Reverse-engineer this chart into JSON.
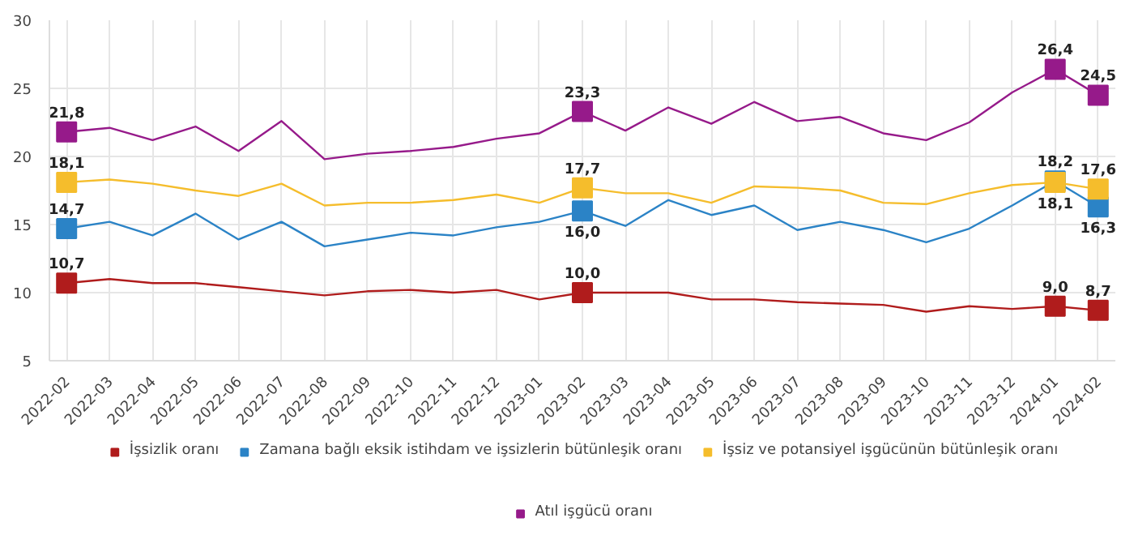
{
  "chart_data": {
    "type": "line",
    "categories": [
      "2022-02",
      "2022-03",
      "2022-04",
      "2022-05",
      "2022-06",
      "2022-07",
      "2022-08",
      "2022-09",
      "2022-10",
      "2022-11",
      "2022-12",
      "2023-01",
      "2023-02",
      "2023-03",
      "2023-04",
      "2023-05",
      "2023-06",
      "2023-07",
      "2023-08",
      "2023-09",
      "2023-10",
      "2023-11",
      "2023-12",
      "2024-01",
      "2024-02"
    ],
    "ylim": [
      5,
      30
    ],
    "yticks": [
      5,
      10,
      15,
      20,
      25,
      30
    ],
    "grid": true,
    "legend": "bottom",
    "line_style": "solid",
    "series": [
      {
        "name": "İşsizlik oranı",
        "color": "#b01c1c",
        "values": [
          10.7,
          11.0,
          10.7,
          10.7,
          10.4,
          10.1,
          9.8,
          10.1,
          10.2,
          10.0,
          10.2,
          9.5,
          10.0,
          10.0,
          10.0,
          9.5,
          9.5,
          9.3,
          9.2,
          9.1,
          8.6,
          9.0,
          8.8,
          9.0,
          8.7
        ],
        "value_labels": [
          "10,7",
          null,
          null,
          null,
          null,
          null,
          null,
          null,
          null,
          null,
          null,
          null,
          "10,0",
          null,
          null,
          null,
          null,
          null,
          null,
          null,
          null,
          null,
          null,
          "9,0",
          "8,7"
        ]
      },
      {
        "name": "Zamana bağlı eksik istihdam ve işsizlerin bütünleşik oranı",
        "color": "#2b83c6",
        "values": [
          14.7,
          15.2,
          14.2,
          15.8,
          13.9,
          15.2,
          13.4,
          13.9,
          14.4,
          14.2,
          14.8,
          15.2,
          16.0,
          14.9,
          16.8,
          15.7,
          16.4,
          14.6,
          15.2,
          14.6,
          13.7,
          14.7,
          16.4,
          18.2,
          16.3
        ],
        "value_labels": [
          "14,7",
          null,
          null,
          null,
          null,
          null,
          null,
          null,
          null,
          null,
          null,
          null,
          "16,0",
          null,
          null,
          null,
          null,
          null,
          null,
          null,
          null,
          null,
          null,
          "18,2",
          "16,3"
        ]
      },
      {
        "name": "İşsiz ve potansiyel işgücünün bütünleşik oranı",
        "color": "#f5bd2c",
        "values": [
          18.1,
          18.3,
          18.0,
          17.5,
          17.1,
          18.0,
          16.4,
          16.6,
          16.6,
          16.8,
          17.2,
          16.6,
          17.7,
          17.3,
          17.3,
          16.6,
          17.8,
          17.7,
          17.5,
          16.6,
          16.5,
          17.3,
          17.9,
          18.1,
          17.6
        ],
        "value_labels": [
          "18,1",
          null,
          null,
          null,
          null,
          null,
          null,
          null,
          null,
          null,
          null,
          null,
          "17,7",
          null,
          null,
          null,
          null,
          null,
          null,
          null,
          null,
          null,
          null,
          "18,1",
          "17,6"
        ]
      },
      {
        "name": "Atıl işgücü oranı",
        "color": "#961a8a",
        "values": [
          21.8,
          22.1,
          21.2,
          22.2,
          20.4,
          22.6,
          19.8,
          20.2,
          20.4,
          20.7,
          21.3,
          21.7,
          23.3,
          21.9,
          23.6,
          22.4,
          24.0,
          22.6,
          22.9,
          21.7,
          21.2,
          22.5,
          24.7,
          26.4,
          24.5
        ],
        "value_labels": [
          "21,8",
          null,
          null,
          null,
          null,
          null,
          null,
          null,
          null,
          null,
          null,
          null,
          "23,3",
          null,
          null,
          null,
          null,
          null,
          null,
          null,
          null,
          null,
          null,
          "26,4",
          "24,5"
        ]
      }
    ]
  }
}
